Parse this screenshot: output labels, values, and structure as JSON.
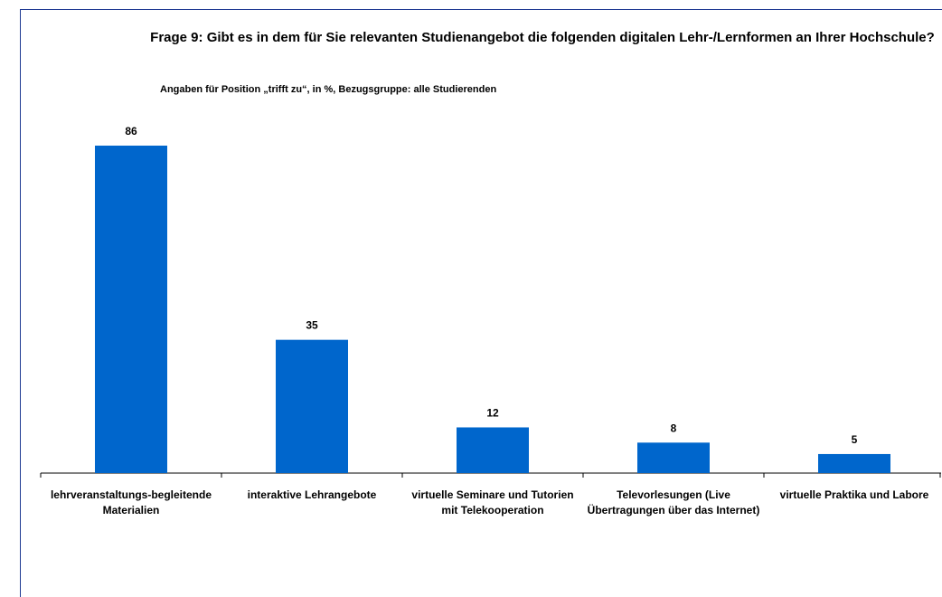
{
  "chart_data": {
    "type": "bar",
    "title": "Frage 9: Gibt es in dem für Sie relevanten Studienangebot die folgenden digitalen Lehr-/Lernformen an Ihrer Hochschule?",
    "subtitle": "Angaben für Position „trifft zu“, in %, Bezugsgruppe: alle Studierenden",
    "categories": [
      "lehrveranstaltungs-begleitende Materialien",
      "interaktive Lehrangebote",
      "virtuelle Seminare und Tutorien mit Telekooperation",
      "Televorlesungen (Live Übertragungen über das Internet)",
      "virtuelle Praktika und Labore"
    ],
    "values": [
      86,
      35,
      12,
      8,
      5
    ],
    "color": "#0066cc"
  }
}
